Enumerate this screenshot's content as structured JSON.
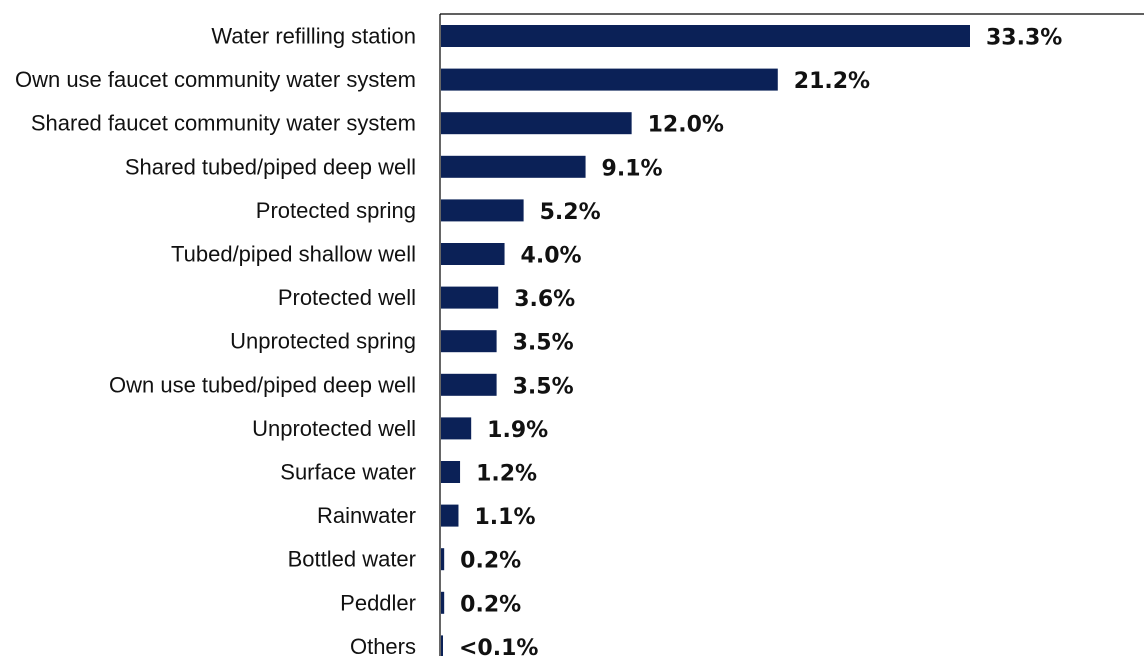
{
  "chart_data": {
    "type": "bar",
    "orientation": "horizontal",
    "title": "",
    "xlabel": "",
    "ylabel": "",
    "categories": [
      "Water refilling station",
      "Own use faucet community water system",
      "Shared faucet community water system",
      "Shared tubed/piped deep well",
      "Protected spring",
      "Tubed/piped shallow well",
      "Protected well",
      "Unprotected spring",
      "Own use tubed/piped deep well",
      "Unprotected well",
      "Surface water",
      "Rainwater",
      "Bottled water",
      "Peddler",
      "Others"
    ],
    "values": [
      33.3,
      21.2,
      12.0,
      9.1,
      5.2,
      4.0,
      3.6,
      3.5,
      3.5,
      1.9,
      1.2,
      1.1,
      0.2,
      0.2,
      0.1
    ],
    "data_labels": [
      "33.3%",
      "21.2%",
      "12.0%",
      "9.1%",
      "5.2%",
      "4.0%",
      "3.6%",
      "3.5%",
      "3.5%",
      "1.9%",
      "1.2%",
      "1.1%",
      "0.2%",
      "0.2%",
      "<0.1%"
    ],
    "xlim": [
      0,
      45
    ],
    "bar_color": "#0b2157",
    "axis_color": "#000000",
    "grid": false,
    "legend": "none"
  }
}
